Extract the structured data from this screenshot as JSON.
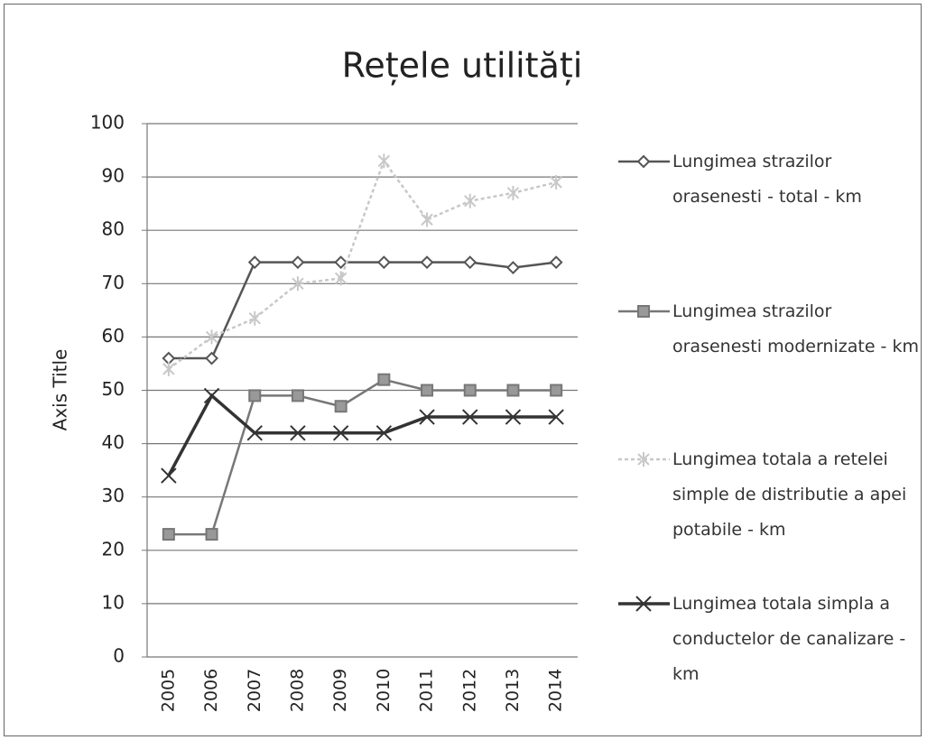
{
  "chart_data": {
    "type": "line",
    "title": "Rețele utilități",
    "y_axis_label": "Axis Title",
    "categories": [
      "2005",
      "2006",
      "2007",
      "2008",
      "2009",
      "2010",
      "2011",
      "2012",
      "2013",
      "2014"
    ],
    "series": [
      {
        "name": "Lungimea strazilor orasenesti - total - km",
        "color": "#555555",
        "marker": "diamond",
        "values": [
          56,
          56,
          74,
          74,
          74,
          74,
          74,
          74,
          73,
          74
        ]
      },
      {
        "name": "Lungimea strazilor orasenesti modernizate - km",
        "color": "#777777",
        "marker": "square",
        "values": [
          23,
          23,
          49,
          49,
          47,
          52,
          50,
          50,
          50,
          50
        ]
      },
      {
        "name": "Lungimea totala a retelei simple de distributie a apei potabile - km",
        "color": "#c8c8c8",
        "marker": "star",
        "values": [
          54,
          60,
          63.5,
          70,
          71,
          93,
          82,
          85.5,
          87,
          89
        ]
      },
      {
        "name": "Lungimea totala simpla a conductelor de canalizare - km",
        "color": "#333333",
        "marker": "x",
        "values": [
          34,
          49,
          42,
          42,
          42,
          42,
          45,
          45,
          45,
          45
        ]
      }
    ],
    "ylim": [
      0,
      100
    ],
    "yticks": [
      0,
      10,
      20,
      30,
      40,
      50,
      60,
      70,
      80,
      90,
      100
    ],
    "grid": true,
    "legend": "right"
  }
}
